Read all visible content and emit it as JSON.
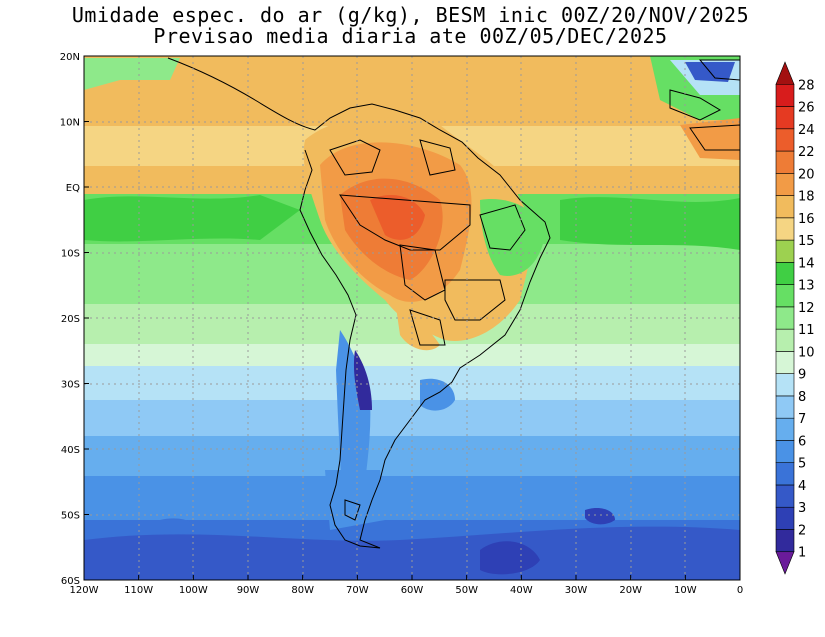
{
  "title": {
    "line1": "Umidade espec. do ar (g/kg), BESM inic 00Z/20/NOV/2025",
    "line2": "Previsao media diaria ate 00Z/05/DEC/2025"
  },
  "map": {
    "lon_range": [
      -120,
      0
    ],
    "lat_range": [
      -60,
      20
    ],
    "lon_labels": [
      "120W",
      "110W",
      "100W",
      "90W",
      "80W",
      "70W",
      "60W",
      "50W",
      "40W",
      "30W",
      "20W",
      "10W",
      "0"
    ],
    "lat_labels": [
      "20N",
      "10N",
      "EQ",
      "10S",
      "20S",
      "30S",
      "40S",
      "50S",
      "60S"
    ],
    "lon_ticks": [
      -120,
      -110,
      -100,
      -90,
      -80,
      -70,
      -60,
      -50,
      -40,
      -30,
      -20,
      -10,
      0
    ],
    "lat_ticks": [
      20,
      10,
      0,
      -10,
      -20,
      -30,
      -40,
      -50,
      -60
    ]
  },
  "colorbar": {
    "levels": [
      "1",
      "2",
      "3",
      "4",
      "5",
      "6",
      "7",
      "8",
      "9",
      "10",
      "11",
      "12",
      "13",
      "14",
      "15",
      "16",
      "18",
      "20",
      "22",
      "24",
      "26",
      "28"
    ],
    "colors": [
      "#6a1b9a",
      "#312a9c",
      "#2e40b5",
      "#3559c8",
      "#3a73d8",
      "#4a92e6",
      "#66aeee",
      "#8fc9f5",
      "#b5e2f6",
      "#d6f6d6",
      "#b7efae",
      "#8ee98a",
      "#66df64",
      "#40cf44",
      "#9dd150",
      "#f5d583",
      "#f1bb5d",
      "#f29b46",
      "#ee7c36",
      "#ec5d2b",
      "#e53a22",
      "#d81c1c",
      "#a31010"
    ]
  },
  "colors": {
    "land_border": "#000000",
    "grid": "#9a9a9a"
  }
}
